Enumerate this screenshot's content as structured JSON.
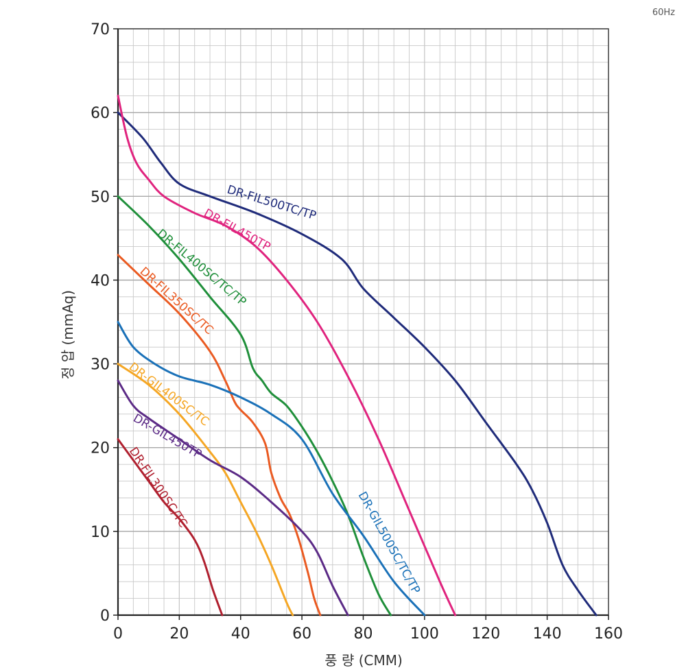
{
  "chart_data": {
    "type": "line",
    "frequency_label": "60Hz",
    "xlabel": "풍 량 (CMM)",
    "ylabel": "정 압 (mmAq)",
    "xlim": [
      0,
      160
    ],
    "ylim": [
      0,
      70
    ],
    "xticks": [
      0,
      20,
      40,
      60,
      80,
      100,
      120,
      140,
      160
    ],
    "yticks": [
      0,
      10,
      20,
      30,
      40,
      50,
      60,
      70
    ],
    "grid": true,
    "series": [
      {
        "name": "DR-FIL500TC/TP",
        "color": "#1f2b7a",
        "x": [
          0,
          8,
          14,
          20,
          30,
          45,
          60,
          73,
          80,
          90,
          100,
          110,
          120,
          130,
          135,
          140,
          145,
          150,
          156
        ],
        "y": [
          60,
          57,
          54,
          51.5,
          50,
          48,
          45.5,
          42.5,
          39,
          35.5,
          32,
          28,
          23,
          18,
          15,
          11,
          6,
          3,
          0
        ]
      },
      {
        "name": "DR-FIL450TP",
        "color": "#e0237e",
        "x": [
          0,
          3,
          6,
          10,
          15,
          25,
          35,
          45,
          55,
          65,
          75,
          85,
          95,
          105,
          110
        ],
        "y": [
          62,
          57,
          54,
          52,
          50,
          48,
          46.5,
          44,
          40,
          35,
          28.5,
          21,
          12.5,
          4,
          0
        ]
      },
      {
        "name": "DR-FIL400SC/TC/TP",
        "color": "#1f8f3a",
        "x": [
          0,
          10,
          20,
          30,
          40,
          44,
          47,
          50,
          55,
          60,
          65,
          70,
          75,
          80,
          85,
          89
        ],
        "y": [
          50,
          46.5,
          42.5,
          38,
          33.5,
          29.5,
          28,
          26.5,
          25,
          22.5,
          19.5,
          16,
          12,
          7,
          2.5,
          0
        ]
      },
      {
        "name": "DR-FIL350SC/TC",
        "color": "#ea5a21",
        "x": [
          0,
          10,
          20,
          30,
          35,
          38,
          40,
          44,
          48,
          50,
          53,
          56,
          59,
          62,
          64,
          66
        ],
        "y": [
          43,
          39.5,
          36,
          31.5,
          28,
          25.5,
          24.5,
          23,
          20.5,
          17,
          14,
          12,
          9,
          5,
          2,
          0
        ]
      },
      {
        "name": "DR-GIL500SC/TC/TP",
        "color": "#1a71b8",
        "x": [
          0,
          5,
          12,
          20,
          30,
          40,
          50,
          60,
          70,
          80,
          90,
          100
        ],
        "y": [
          35,
          32,
          30,
          28.5,
          27.5,
          26,
          24,
          21,
          14.5,
          9.5,
          4,
          0
        ]
      },
      {
        "name": "DR-GIL400SC/TC",
        "color": "#f5a623",
        "x": [
          0,
          10,
          20,
          30,
          35,
          40,
          45,
          50,
          55,
          57
        ],
        "y": [
          30,
          27.5,
          24,
          19.5,
          17,
          13.5,
          10,
          6,
          1.5,
          0
        ]
      },
      {
        "name": "DR-GIL450TP",
        "color": "#5b2a86",
        "x": [
          0,
          5,
          10,
          20,
          30,
          40,
          50,
          60,
          65,
          70,
          75
        ],
        "y": [
          28,
          25,
          23.5,
          21,
          18.5,
          16.5,
          13.5,
          10,
          7.5,
          3.5,
          0
        ]
      },
      {
        "name": "DR-FIL300SC/TC",
        "color": "#b0202f",
        "x": [
          0,
          5,
          10,
          15,
          20,
          25,
          28,
          31,
          34
        ],
        "y": [
          21,
          18.5,
          16,
          13.5,
          11.5,
          9,
          6.5,
          3,
          0
        ]
      }
    ],
    "annotations": [
      {
        "text": "DR-FIL500TC/TP",
        "series": 0
      },
      {
        "text": "DR-FIL450TP",
        "series": 1
      },
      {
        "text": "DR-FIL400SC/TC/TP",
        "series": 2
      },
      {
        "text": "DR-FIL350SC/TC",
        "series": 3
      },
      {
        "text": "DR-GIL500SC/TC/TP",
        "series": 4
      },
      {
        "text": "DR-GIL400SC/TC",
        "series": 5
      },
      {
        "text": "DR-GIL450TP",
        "series": 6
      },
      {
        "text": "DR-FIL300SC/TC",
        "series": 7
      }
    ]
  }
}
